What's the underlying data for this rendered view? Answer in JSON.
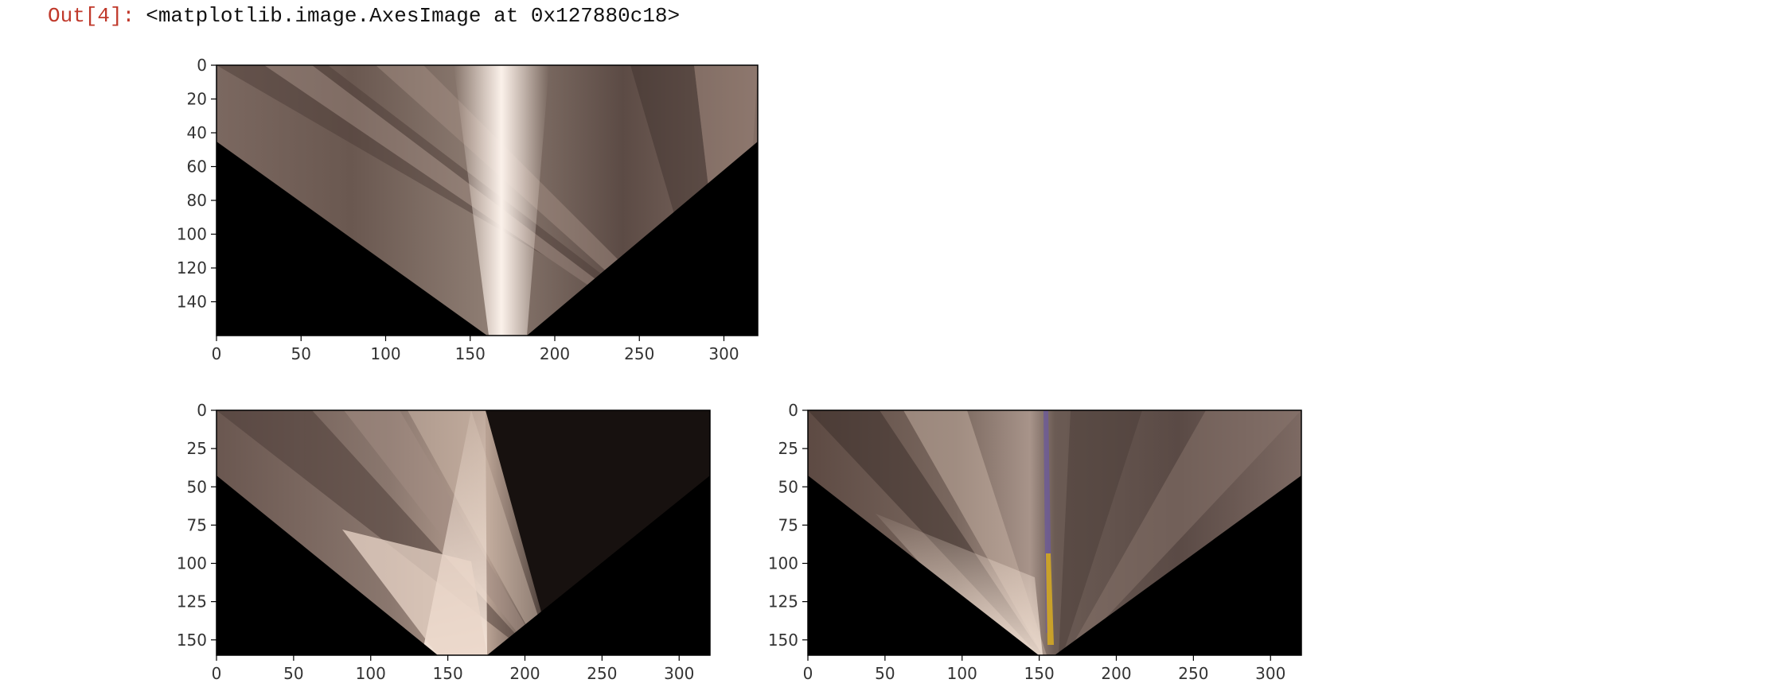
{
  "cell": {
    "prompt": "Out[4]:",
    "repr": "<matplotlib.image.AxesImage at 0x127880c18>"
  },
  "colors": {
    "prompt": "#c0392b",
    "mask_background": "#000000",
    "axes_spine": "#000000",
    "tick_text": "#333333"
  },
  "plots": [
    {
      "name": "plot-top",
      "x_ticks": [
        "0",
        "50",
        "100",
        "150",
        "200",
        "250",
        "300"
      ],
      "y_ticks": [
        "0",
        "20",
        "40",
        "60",
        "80",
        "100",
        "120",
        "140"
      ],
      "image": "warped road fan, bright center band"
    },
    {
      "name": "plot-bottom-left",
      "x_ticks": [
        "0",
        "50",
        "100",
        "150",
        "200",
        "250",
        "300"
      ],
      "y_ticks": [
        "0",
        "25",
        "50",
        "75",
        "100",
        "125",
        "150"
      ],
      "image": "warped road fan, bright lower center, dark right wedge"
    },
    {
      "name": "plot-bottom-right",
      "x_ticks": [
        "0",
        "50",
        "100",
        "150",
        "200",
        "250",
        "300"
      ],
      "y_ticks": [
        "0",
        "25",
        "50",
        "75",
        "100",
        "125",
        "150"
      ],
      "image": "warped road fan, yellow lane line near center"
    }
  ]
}
